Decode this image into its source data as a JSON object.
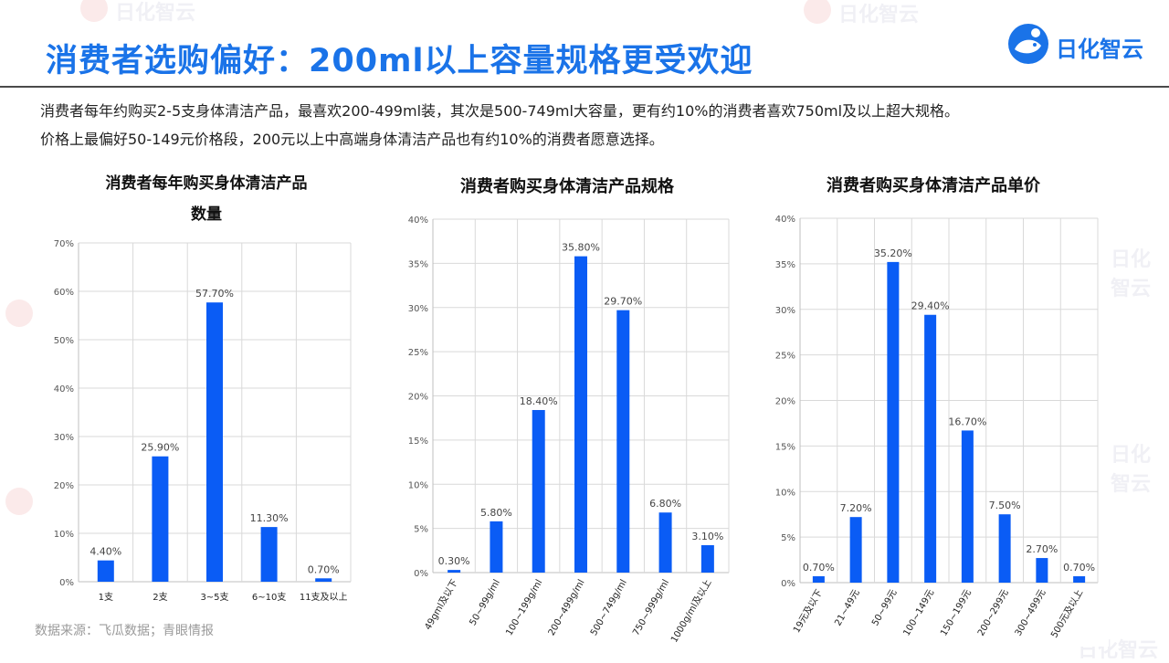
{
  "header": {
    "title": "消费者选购偏好：200ml以上容量规格更受欢迎",
    "logo_text": "日化智云",
    "watermark_text": "日化智云"
  },
  "description": {
    "line1": "消费者每年约购买2-5支身体清洁产品，最喜欢200-499ml装，其次是500-749ml大容量，更有约10%的消费者喜欢750ml及以上超大规格。",
    "line2": "价格上最偏好50-149元价格段，200元以上中高端身体清洁产品也有约10%的消费者愿意选择。"
  },
  "footer": {
    "source": "数据来源：飞瓜数据；青眼情报"
  },
  "colors": {
    "accent": "#1a73e8",
    "bar": "#0a5cf5",
    "grid": "#d9d9d9",
    "axis": "#bfbfbf"
  },
  "chart_data": [
    {
      "type": "bar",
      "title_lines": [
        "消费者每年购买身体清洁产品",
        "数量"
      ],
      "categories": [
        "1支",
        "2支",
        "3~5支",
        "6~10支",
        "11支及以上"
      ],
      "values": [
        4.4,
        25.9,
        57.7,
        11.3,
        0.7
      ],
      "labels": [
        "4.40%",
        "25.90%",
        "57.70%",
        "11.30%",
        "0.70%"
      ],
      "y_ticks": [
        "0%",
        "10%",
        "20%",
        "30%",
        "40%",
        "50%",
        "60%",
        "70%"
      ],
      "ylim": [
        0,
        70
      ],
      "xlabel": "",
      "ylabel": "",
      "grid": true,
      "rotated_xlabels": false
    },
    {
      "type": "bar",
      "title_lines": [
        "消费者购买身体清洁产品规格"
      ],
      "categories": [
        "49gml及以下",
        "50~99g/ml",
        "100~199g/ml",
        "200~499g/ml",
        "500~749g/ml",
        "750~999g/ml",
        "1000g/ml及以上"
      ],
      "values": [
        0.3,
        5.8,
        18.4,
        35.8,
        29.7,
        6.8,
        3.1
      ],
      "labels": [
        "0.30%",
        "5.80%",
        "18.40%",
        "35.80%",
        "29.70%",
        "6.80%",
        "3.10%"
      ],
      "y_ticks": [
        "0%",
        "5%",
        "10%",
        "15%",
        "20%",
        "25%",
        "30%",
        "35%",
        "40%"
      ],
      "ylim": [
        0,
        40
      ],
      "xlabel": "",
      "ylabel": "",
      "grid": true,
      "rotated_xlabels": true
    },
    {
      "type": "bar",
      "title_lines": [
        "消费者购买身体清洁产品单价"
      ],
      "categories": [
        "19元及以下",
        "21~49元",
        "50~99元",
        "100~149元",
        "150~199元",
        "200~299元",
        "300~499元",
        "500元及以上"
      ],
      "values": [
        0.7,
        7.2,
        35.2,
        29.4,
        16.7,
        7.5,
        2.7,
        0.7
      ],
      "labels": [
        "0.70%",
        "7.20%",
        "35.20%",
        "29.40%",
        "16.70%",
        "7.50%",
        "2.70%",
        "0.70%"
      ],
      "y_ticks": [
        "0%",
        "5%",
        "10%",
        "15%",
        "20%",
        "25%",
        "30%",
        "35%",
        "40%"
      ],
      "ylim": [
        0,
        40
      ],
      "xlabel": "",
      "ylabel": "",
      "grid": true,
      "rotated_xlabels": true
    }
  ]
}
